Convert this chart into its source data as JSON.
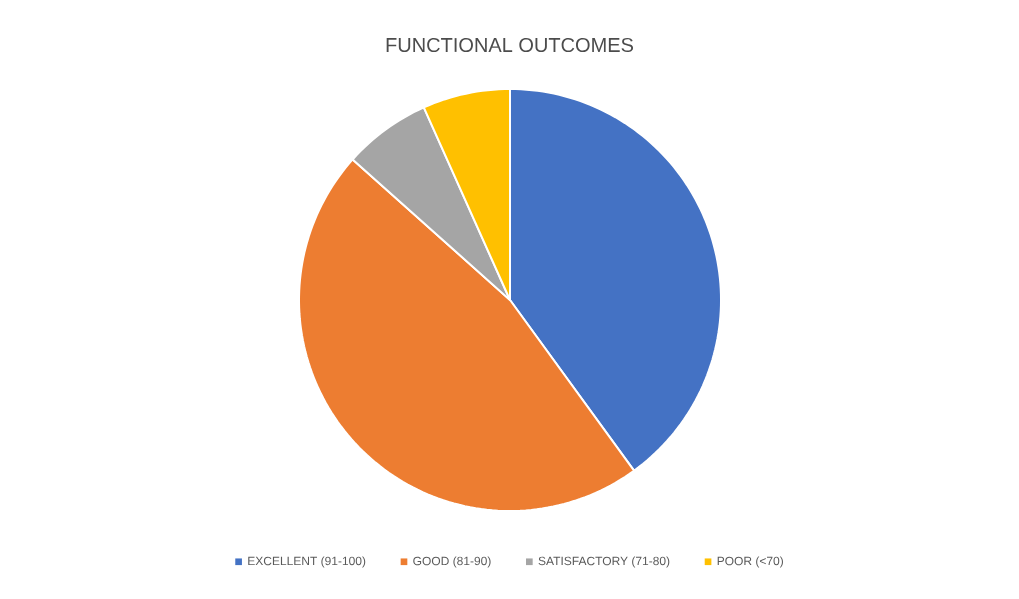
{
  "chart_data": {
    "type": "pie",
    "title": "FUNCTIONAL OUTCOMES",
    "categories": [
      "EXCELLENT (91-100)",
      "GOOD (81-90)",
      "SATISFACTORY (71-80)",
      "POOR (<70)"
    ],
    "values": [
      40,
      46.6,
      6.7,
      6.7
    ],
    "colors": [
      "#4472c4",
      "#ed7d31",
      "#a5a5a5",
      "#ffc000"
    ],
    "legend": "bottom"
  }
}
